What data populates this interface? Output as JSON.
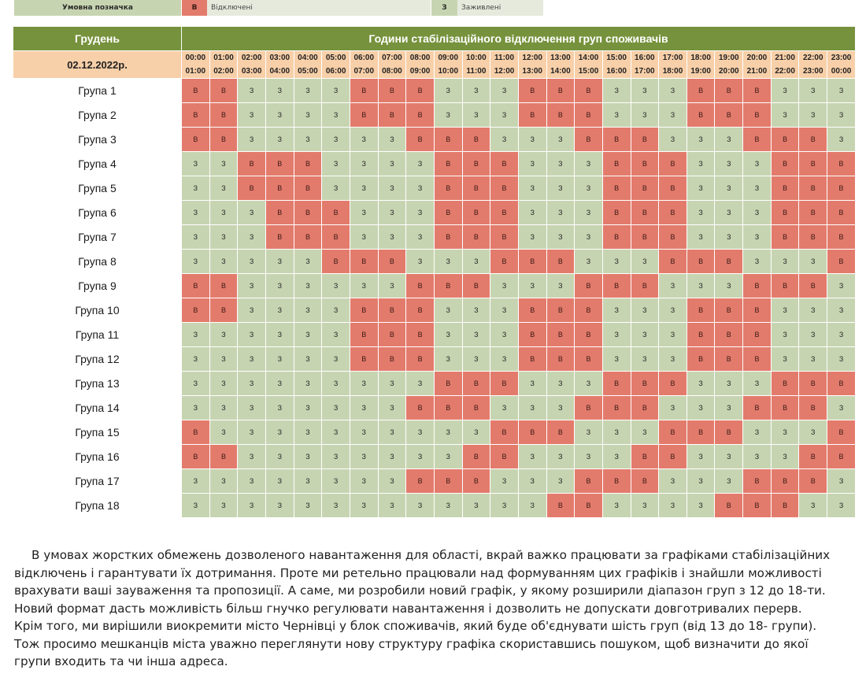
{
  "legend": {
    "title": "Умовна позначка",
    "off_code": "В",
    "off_label": "Відключені",
    "on_code": "З",
    "on_label": "Заживлені"
  },
  "colors": {
    "header_green": "#76923c",
    "date_row": "#f7cfa8",
    "off_cell": "#e37b6c",
    "on_cell": "#c7d4b1"
  },
  "table": {
    "month": "Грудень",
    "title": "Години стабілізаційного відключення груп споживачів",
    "date": "02.12.2022р.",
    "hours": [
      {
        "from": "00:00",
        "to": "01:00"
      },
      {
        "from": "01:00",
        "to": "02:00"
      },
      {
        "from": "02:00",
        "to": "03:00"
      },
      {
        "from": "03:00",
        "to": "04:00"
      },
      {
        "from": "04:00",
        "to": "05:00"
      },
      {
        "from": "05:00",
        "to": "06:00"
      },
      {
        "from": "06:00",
        "to": "07:00"
      },
      {
        "from": "07:00",
        "to": "08:00"
      },
      {
        "from": "08:00",
        "to": "09:00"
      },
      {
        "from": "09:00",
        "to": "10:00"
      },
      {
        "from": "10:00",
        "to": "11:00"
      },
      {
        "from": "11:00",
        "to": "12:00"
      },
      {
        "from": "12:00",
        "to": "13:00"
      },
      {
        "from": "13:00",
        "to": "14:00"
      },
      {
        "from": "14:00",
        "to": "15:00"
      },
      {
        "from": "15:00",
        "to": "16:00"
      },
      {
        "from": "16:00",
        "to": "17:00"
      },
      {
        "from": "17:00",
        "to": "18:00"
      },
      {
        "from": "18:00",
        "to": "19:00"
      },
      {
        "from": "19:00",
        "to": "20:00"
      },
      {
        "from": "20:00",
        "to": "21:00"
      },
      {
        "from": "21:00",
        "to": "22:00"
      },
      {
        "from": "22:00",
        "to": "23:00"
      },
      {
        "from": "23:00",
        "to": "00:00"
      }
    ],
    "groups": [
      {
        "name": "Група 1",
        "cells": "ВВЗЗЗЗВВВЗЗЗВВВЗЗЗВВВЗЗЗ"
      },
      {
        "name": "Група 2",
        "cells": "ВВЗЗЗЗВВВЗЗЗВВВЗЗЗВВВЗЗЗ"
      },
      {
        "name": "Група 3",
        "cells": "ВВЗЗЗЗЗЗВВВЗЗЗВВВЗЗЗВВВЗ"
      },
      {
        "name": "Група 4",
        "cells": "ЗЗВВВЗЗЗЗВВВЗЗЗВВВЗЗЗВВВ"
      },
      {
        "name": "Група 5",
        "cells": "ЗЗВВВЗЗЗЗВВВЗЗЗВВВЗЗЗВВВ"
      },
      {
        "name": "Група 6",
        "cells": "ЗЗЗВВВЗЗЗВВВЗЗЗВВВЗЗЗВВВ"
      },
      {
        "name": "Група 7",
        "cells": "ЗЗЗВВВЗЗЗВВВЗЗЗВВВЗЗЗВВВ"
      },
      {
        "name": "Група 8",
        "cells": "ЗЗЗЗЗВВВЗЗЗВВВЗЗЗВВВЗЗЗВ"
      },
      {
        "name": "Група 9",
        "cells": "ВВЗЗЗЗЗЗВВВЗЗЗВВВЗЗЗВВВЗ"
      },
      {
        "name": "Група 10",
        "cells": "ВВЗЗЗЗВВВЗЗЗВВВЗЗЗВВВЗЗЗ"
      },
      {
        "name": "Група 11",
        "cells": "ЗЗЗЗЗЗВВВЗЗЗВВВЗЗЗВВВЗЗЗ"
      },
      {
        "name": "Група 12",
        "cells": "ЗЗЗЗЗЗВВВЗЗЗВВВЗЗЗВВВЗЗЗ"
      },
      {
        "name": "Група 13",
        "cells": "ЗЗЗЗЗЗЗЗЗВВВЗЗЗВВВЗЗЗВВВ"
      },
      {
        "name": "Група 14",
        "cells": "ЗЗЗЗЗЗЗЗВВВЗЗЗВВВЗЗЗВВВЗ"
      },
      {
        "name": "Група 15",
        "cells": "ВЗЗЗЗЗЗЗЗЗЗВВВЗЗЗВВВЗЗЗВ"
      },
      {
        "name": "Група 16",
        "cells": "ВВЗЗЗЗЗЗЗЗВВЗЗЗЗВВЗЗЗЗВВ"
      },
      {
        "name": "Група 17",
        "cells": "ЗЗЗЗЗЗЗЗВВВЗЗЗВВВЗЗЗВВВЗ"
      },
      {
        "name": "Група 18",
        "cells": "ЗЗЗЗЗЗЗЗЗЗЗЗЗВВЗЗЗЗВВВЗЗ"
      }
    ]
  },
  "paragraph": "В умовах жорстких обмежень дозволеного навантаження для області, вкрай важко працювати за графіками стабілізаційних відключень і гарантувати їх дотримання. Проте ми ретельно працювали над формуванням цих графіків і знайшли можливості врахувати ваші зауваження та пропозиції. А саме, ми розробили новий графік, у якому розширили діапазон груп з 12 до 18-ти. Новий формат дасть можливість більш гнучко регулювати навантаження і дозволить не допускати довготривалих перерв. Крім того, ми вирішили виокремити місто Чернівці у блок споживачів, який буде об'єднувати шість груп (від 13 до 18- групи). Тож просимо мешканців міста уважно переглянути нову структуру графіка скориставшись пошуком, щоб визначити до якої групи входить та чи інша адреса."
}
